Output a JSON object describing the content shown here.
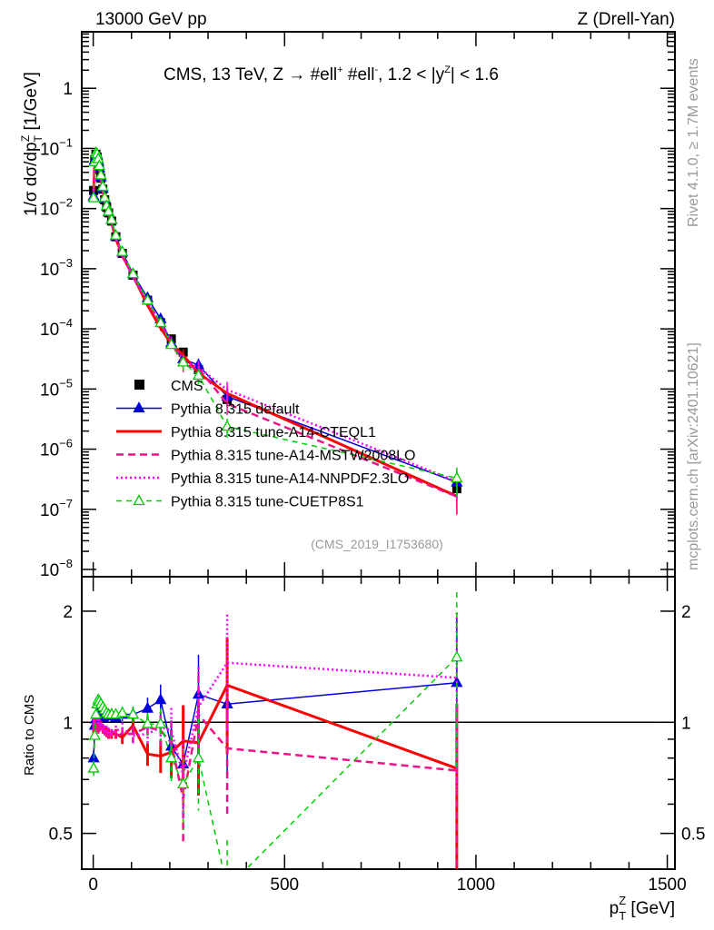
{
  "header": {
    "left": "13000 GeV pp",
    "right": "Z (Drell-Yan)",
    "side_top": "Rivet 4.1.0, ≥ 1.7M events",
    "side_bottom": "mcplots.cern.ch [arXiv:2401.10621]"
  },
  "chart_data": {
    "type": "line",
    "title": "CMS, 13 TeV, Z →  #ell⁺ #ell⁻, 1.2 < |yᴼ| < 1.6",
    "title_parts": {
      "main": "CMS, 13 TeV, Z →  #ell",
      "sup1": "+",
      "mid": " #ell",
      "sup2": "-",
      "end1": ", 1.2 < |y",
      "sup3": "Z",
      "end2": "| < 1.6"
    },
    "analysis_tag": "(CMS_2019_I1753680)",
    "ylabel": {
      "main": "1/σ dσ/dp",
      "sub": "T",
      "sup": "Z",
      "unit": " [1/GeV]"
    },
    "ratio_ylabel": "Ratio to CMS",
    "xlabel": {
      "main": "p",
      "sub": "T",
      "sup": "Z",
      "unit": " [GeV]"
    },
    "xlim": [
      -30,
      1520
    ],
    "ylim": [
      1e-08,
      8.7
    ],
    "ratio_ylim": [
      0.4,
      2.48
    ],
    "xticks": [
      "0",
      "500",
      "1000",
      "1500"
    ],
    "xtick_values": [
      0,
      500,
      1000,
      1500
    ],
    "yticks": [
      {
        "v": 1,
        "base": "1",
        "exp": ""
      },
      {
        "v": 0.1,
        "base": "10",
        "exp": "−1"
      },
      {
        "v": 0.01,
        "base": "10",
        "exp": "−2"
      },
      {
        "v": 0.001,
        "base": "10",
        "exp": "−3"
      },
      {
        "v": 0.0001,
        "base": "10",
        "exp": "−4"
      },
      {
        "v": 1e-05,
        "base": "10",
        "exp": "−5"
      },
      {
        "v": 1e-06,
        "base": "10",
        "exp": "−6"
      },
      {
        "v": 1e-07,
        "base": "10",
        "exp": "−7"
      },
      {
        "v": 1e-08,
        "base": "10",
        "exp": "−8"
      }
    ],
    "ratio_yticks": [
      {
        "v": 2,
        "label": "2"
      },
      {
        "v": 1,
        "label": "1"
      },
      {
        "v": 0.5,
        "label": "0.5"
      }
    ],
    "legend_position": "middle-left",
    "x": [
      1,
      4,
      7,
      10,
      13,
      16,
      20,
      25,
      30,
      35,
      40,
      48,
      59,
      76,
      104,
      142,
      176,
      204,
      235,
      275,
      350,
      950
    ],
    "data": {
      "name": "CMS",
      "values": [
        0.02,
        0.065,
        0.08,
        0.072,
        0.058,
        0.045,
        0.032,
        0.021,
        0.014,
        0.0105,
        0.0085,
        0.0062,
        0.0034,
        0.0018,
        0.00078,
        0.0003,
        0.000127,
        6.8e-05,
        4.1e-05,
        2.1e-05,
        6.7e-06,
        2.2e-07
      ]
    },
    "series": [
      {
        "name": "Pythia 8.315 default",
        "color": "#0000dd",
        "style": "solid",
        "marker": "triangle-filled",
        "ratio": [
          0.8,
          0.98,
          1.02,
          1.05,
          1.06,
          1.04,
          1.05,
          1.03,
          1.04,
          1.05,
          1.04,
          1.05,
          1.03,
          1.05,
          1.05,
          1.09,
          1.15,
          0.86,
          0.77,
          1.19,
          1.12,
          1.28
        ]
      },
      {
        "name": "Pythia 8.315 tune-A14-CTEQL1",
        "color": "#ff0000",
        "style": "solid-thick",
        "marker": "none",
        "ratio": [
          0.95,
          1.0,
          0.98,
          0.97,
          0.96,
          0.98,
          0.99,
          0.97,
          0.95,
          0.94,
          0.93,
          0.93,
          0.93,
          0.91,
          0.98,
          0.82,
          0.81,
          0.83,
          0.89,
          0.88,
          1.26,
          0.75
        ]
      },
      {
        "name": "Pythia 8.315 tune-A14-MSTW2008LO",
        "color": "#ee1188",
        "style": "dashed",
        "marker": "none",
        "ratio": [
          0.95,
          0.97,
          0.98,
          0.96,
          0.95,
          0.96,
          0.97,
          0.95,
          0.94,
          0.93,
          0.92,
          0.93,
          0.92,
          0.93,
          0.93,
          0.97,
          0.95,
          0.88,
          0.62,
          1.05,
          0.85,
          0.74
        ]
      },
      {
        "name": "Pythia 8.315 tune-A14-NNPDF2.3LO",
        "color": "#ff00ff",
        "style": "dotted",
        "marker": "none",
        "ratio": [
          1.0,
          1.03,
          1.05,
          1.03,
          1.01,
          1.0,
          0.98,
          0.97,
          0.96,
          0.95,
          0.94,
          0.93,
          0.95,
          0.96,
          0.92,
          0.93,
          0.97,
          0.95,
          0.72,
          1.1,
          1.45,
          1.32
        ]
      },
      {
        "name": "Pythia 8.315 tune-CUETP8S1",
        "color": "#00cc00",
        "style": "dashed-thin",
        "marker": "triangle-open",
        "ratio": [
          0.75,
          0.92,
          1.05,
          1.12,
          1.15,
          1.14,
          1.12,
          1.1,
          1.08,
          1.06,
          1.05,
          1.05,
          1.05,
          1.06,
          1.05,
          0.99,
          0.99,
          0.8,
          0.68,
          0.8,
          0.355,
          1.5
        ]
      }
    ],
    "ratio_rel_err": [
      0.05,
      0.03,
      0.02,
      0.02,
      0.02,
      0.02,
      0.02,
      0.02,
      0.02,
      0.03,
      0.03,
      0.03,
      0.03,
      0.04,
      0.05,
      0.07,
      0.1,
      0.15,
      0.25,
      0.28,
      0.35,
      0.5
    ]
  }
}
